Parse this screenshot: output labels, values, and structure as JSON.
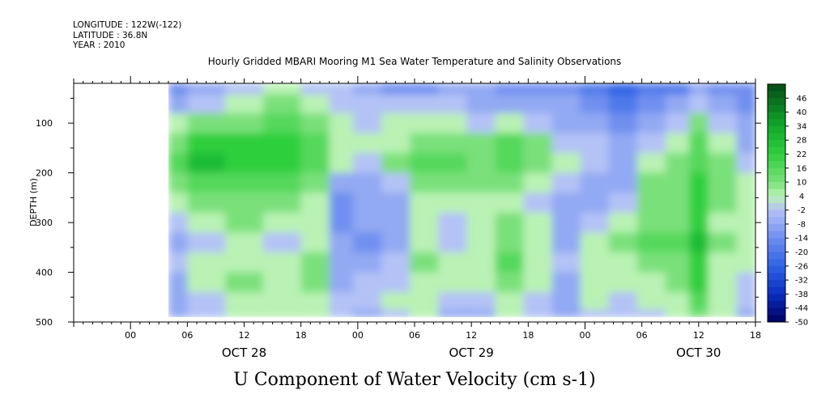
{
  "header": {
    "longitude": "LONGITUDE : 122W(-122)",
    "latitude": "LATITUDE : 36.8N",
    "year": "YEAR : 2010"
  },
  "chart_data": {
    "type": "heatmap",
    "title": "Hourly Gridded MBARI Mooring M1 Sea Water Temperature and Salinity Observations",
    "caption": "U Component of Water Velocity (cm s-1)",
    "ylabel": "DEPTH (m)",
    "y_inverted": true,
    "ylim": [
      500,
      20
    ],
    "y_ticks": [
      100,
      200,
      300,
      400,
      500
    ],
    "x_units": "hours since 2010-10-27 18:00",
    "xlim": [
      0,
      72
    ],
    "x_tick_labels": [
      {
        "x": 6,
        "label": "00"
      },
      {
        "x": 12,
        "label": "06"
      },
      {
        "x": 18,
        "label": "12"
      },
      {
        "x": 24,
        "label": "18"
      },
      {
        "x": 30,
        "label": "00"
      },
      {
        "x": 36,
        "label": "06"
      },
      {
        "x": 42,
        "label": "12"
      },
      {
        "x": 48,
        "label": "18"
      },
      {
        "x": 54,
        "label": "00"
      },
      {
        "x": 60,
        "label": "06"
      },
      {
        "x": 66,
        "label": "12"
      },
      {
        "x": 72,
        "label": "18"
      }
    ],
    "day_labels": [
      {
        "x": 18,
        "label": "OCT 28"
      },
      {
        "x": 42,
        "label": "OCT 29"
      },
      {
        "x": 66,
        "label": "OCT 30"
      }
    ],
    "data_extent": {
      "x_start": 10,
      "x_end": 72,
      "depth_top": 20,
      "depth_bottom": 490
    },
    "colorbar": {
      "min": -50,
      "max": 52,
      "step": 3,
      "labels": [
        "46",
        "40",
        "34",
        "28",
        "22",
        "16",
        "10",
        "4",
        "-2",
        "-8",
        "-14",
        "-20",
        "-26",
        "-32",
        "-38",
        "-44",
        "-50"
      ],
      "color_stops": [
        {
          "v": -50,
          "color": "#000060"
        },
        {
          "v": -38,
          "color": "#0a2fc0"
        },
        {
          "v": -26,
          "color": "#2f62e4"
        },
        {
          "v": -14,
          "color": "#6f8ff0"
        },
        {
          "v": -2,
          "color": "#b4c2f6"
        },
        {
          "v": 4,
          "color": "#b9f2b4"
        },
        {
          "v": 10,
          "color": "#7ae07a"
        },
        {
          "v": 22,
          "color": "#2ecf3e"
        },
        {
          "v": 34,
          "color": "#10a82a"
        },
        {
          "v": 46,
          "color": "#0a6a1e"
        },
        {
          "v": 52,
          "color": "#064a16"
        }
      ]
    },
    "approx_field": {
      "depths": [
        25,
        60,
        100,
        140,
        180,
        220,
        260,
        300,
        340,
        380,
        420,
        460,
        490
      ],
      "columns": [
        {
          "x": 10,
          "values": [
            -14,
            -8,
            4,
            10,
            16,
            10,
            4,
            -2,
            -8,
            -2,
            -8,
            -8,
            -8
          ]
        },
        {
          "x": 14,
          "values": [
            -8,
            -2,
            10,
            22,
            28,
            16,
            10,
            4,
            -2,
            4,
            4,
            -2,
            -2
          ]
        },
        {
          "x": 18,
          "values": [
            -2,
            4,
            10,
            22,
            22,
            16,
            10,
            10,
            4,
            4,
            10,
            4,
            4
          ]
        },
        {
          "x": 22,
          "values": [
            4,
            10,
            16,
            22,
            22,
            16,
            10,
            4,
            -2,
            4,
            4,
            4,
            4
          ]
        },
        {
          "x": 26,
          "values": [
            -2,
            4,
            10,
            16,
            16,
            10,
            4,
            4,
            4,
            10,
            10,
            4,
            4
          ]
        },
        {
          "x": 28,
          "values": [
            -2,
            -2,
            4,
            4,
            4,
            -8,
            -14,
            -14,
            -8,
            -8,
            -8,
            -2,
            -2
          ]
        },
        {
          "x": 31,
          "values": [
            -8,
            -2,
            -2,
            4,
            -2,
            -8,
            -8,
            -8,
            -14,
            -8,
            -2,
            -2,
            -8
          ]
        },
        {
          "x": 34,
          "values": [
            -14,
            -2,
            4,
            4,
            10,
            -2,
            -8,
            -8,
            -8,
            -2,
            -2,
            4,
            -2
          ]
        },
        {
          "x": 37,
          "values": [
            -14,
            -2,
            4,
            10,
            16,
            10,
            4,
            4,
            4,
            10,
            4,
            4,
            4
          ]
        },
        {
          "x": 40,
          "values": [
            -8,
            -2,
            4,
            10,
            16,
            10,
            4,
            -2,
            -2,
            4,
            4,
            -2,
            -8
          ]
        },
        {
          "x": 43,
          "values": [
            -8,
            -8,
            -2,
            10,
            10,
            10,
            4,
            4,
            4,
            4,
            4,
            -2,
            -8
          ]
        },
        {
          "x": 46,
          "values": [
            -14,
            -8,
            4,
            16,
            16,
            10,
            4,
            10,
            10,
            16,
            10,
            4,
            4
          ]
        },
        {
          "x": 49,
          "values": [
            -14,
            -8,
            -2,
            10,
            10,
            4,
            -2,
            4,
            4,
            4,
            4,
            -2,
            -2
          ]
        },
        {
          "x": 52,
          "values": [
            -14,
            -8,
            -8,
            -2,
            4,
            -2,
            -8,
            -8,
            -8,
            -2,
            -8,
            -8,
            -8
          ]
        },
        {
          "x": 55,
          "values": [
            -20,
            -14,
            -8,
            -2,
            -2,
            -8,
            -8,
            -2,
            4,
            4,
            4,
            4,
            -2
          ]
        },
        {
          "x": 58,
          "values": [
            -26,
            -20,
            -14,
            -8,
            -8,
            -8,
            -2,
            4,
            10,
            4,
            4,
            -2,
            -2
          ]
        },
        {
          "x": 61,
          "values": [
            -20,
            -14,
            -8,
            -2,
            4,
            10,
            10,
            10,
            16,
            10,
            4,
            4,
            -2
          ]
        },
        {
          "x": 64,
          "values": [
            -20,
            -8,
            -2,
            4,
            10,
            10,
            10,
            10,
            16,
            10,
            10,
            4,
            4
          ]
        },
        {
          "x": 66,
          "values": [
            -8,
            -2,
            10,
            16,
            16,
            22,
            22,
            22,
            28,
            22,
            22,
            16,
            10
          ]
        },
        {
          "x": 68,
          "values": [
            -14,
            -8,
            -2,
            4,
            10,
            10,
            10,
            4,
            10,
            4,
            4,
            4,
            4
          ]
        },
        {
          "x": 72,
          "values": [
            -14,
            -14,
            -8,
            -8,
            -2,
            4,
            4,
            4,
            4,
            4,
            -2,
            -2,
            -8
          ]
        }
      ]
    }
  }
}
